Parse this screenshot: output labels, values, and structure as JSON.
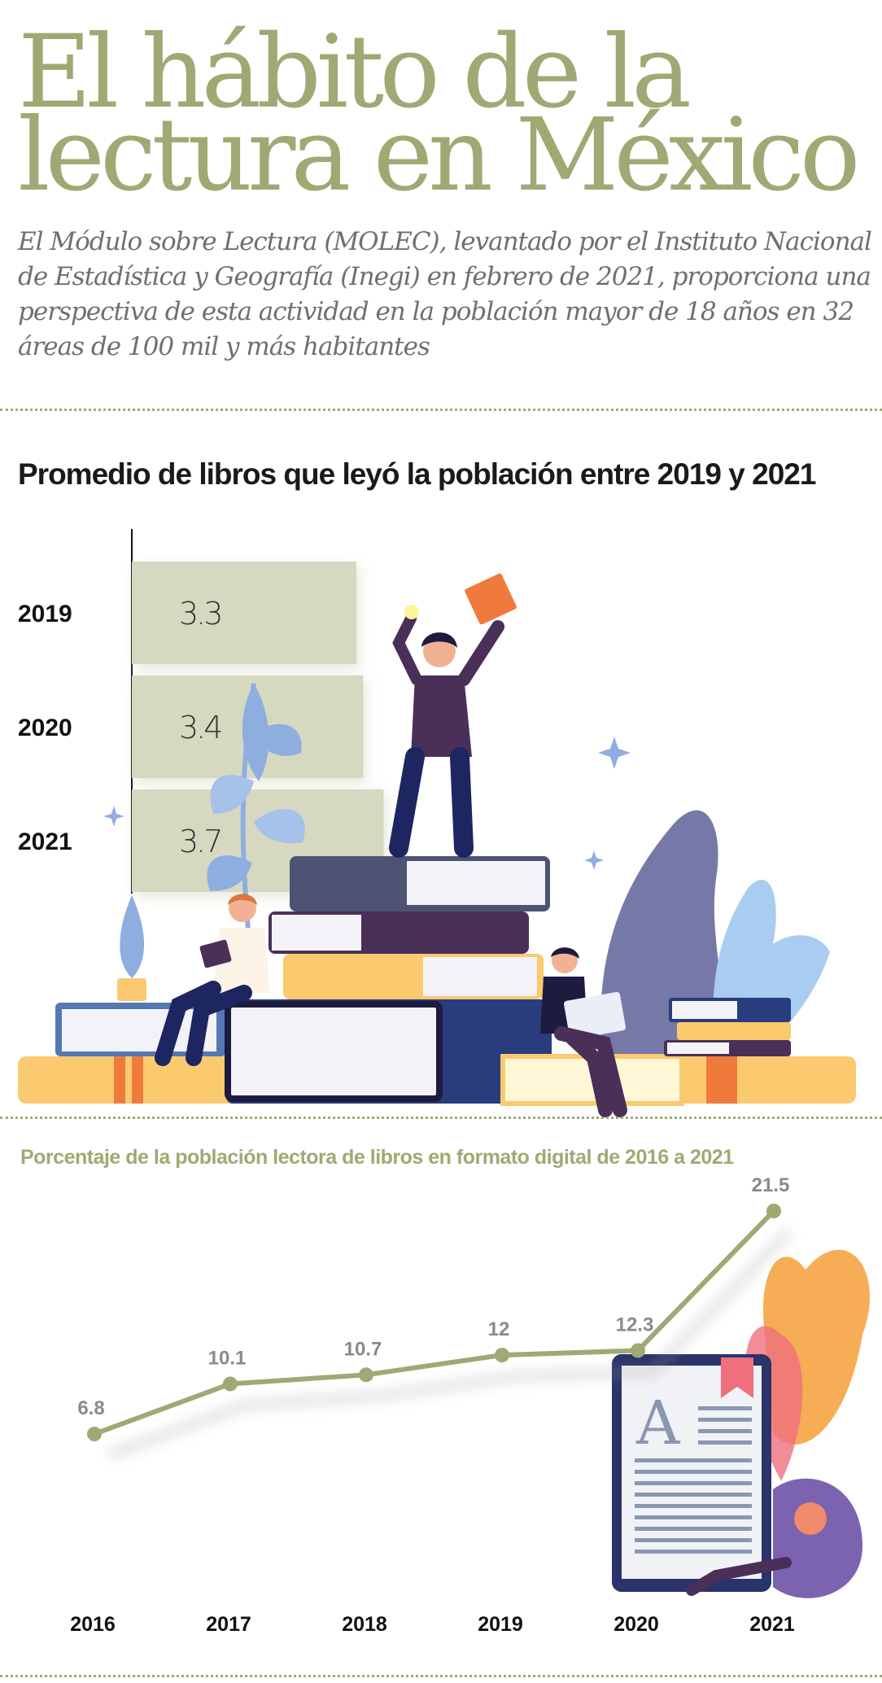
{
  "header": {
    "title": "El hábito de la lectura en México",
    "subtitle": "El Módulo sobre Lectura (MOLEC), levantado por el Instituto Nacional de Estadística y Geografía (Inegi) en febrero de 2021, proporciona una perspectiva de esta actividad en la población mayor de 18 años en 32 áreas de 100 mil y más habitantes"
  },
  "colors": {
    "accent": "#a2a873",
    "bar": "#d6d8c0",
    "line": "#a2a873"
  },
  "chart_data": [
    {
      "type": "bar",
      "orientation": "horizontal",
      "title": "Promedio de libros que leyó la población entre 2019 y 2021",
      "categories": [
        "2019",
        "2020",
        "2021"
      ],
      "values": [
        3.3,
        3.4,
        3.7
      ],
      "value_labels": [
        "3.3",
        "3.4",
        "3.7"
      ]
    },
    {
      "type": "line",
      "title": "Porcentaje de la población lectora de libros en formato digital de 2016 a 2021",
      "x": [
        "2016",
        "2017",
        "2018",
        "2019",
        "2020",
        "2021"
      ],
      "values": [
        6.8,
        10.1,
        10.7,
        12,
        12.3,
        21.5
      ],
      "value_labels": [
        "6.8",
        "10.1",
        "10.7",
        "12",
        "12.3",
        "21.5"
      ]
    }
  ]
}
